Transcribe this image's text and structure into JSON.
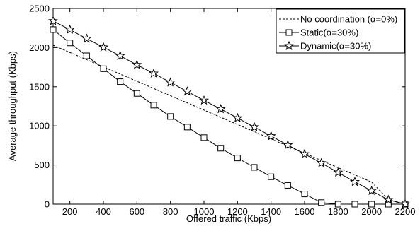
{
  "chart_data": {
    "type": "line",
    "xlabel": "Offered traffic (Kbps)",
    "ylabel": "Average throughput (Kbps)",
    "xlim": [
      100,
      2200
    ],
    "ylim": [
      0,
      2500
    ],
    "xticks": [
      200,
      400,
      600,
      800,
      1000,
      1200,
      1400,
      1600,
      1800,
      2000,
      2200
    ],
    "yticks": [
      0,
      500,
      1000,
      1500,
      2000,
      2500
    ],
    "grid": false,
    "legend_position": "top-right",
    "x": [
      100,
      200,
      300,
      400,
      500,
      600,
      700,
      800,
      900,
      1000,
      1100,
      1200,
      1300,
      1400,
      1500,
      1600,
      1700,
      1800,
      1900,
      2000,
      2100,
      2200
    ],
    "series": [
      {
        "name": "No coordination (α=0%)",
        "style": "dashed",
        "marker": "none",
        "color": "#000000",
        "values": [
          2030,
          1938,
          1846,
          1754,
          1662,
          1570,
          1478,
          1386,
          1294,
          1202,
          1110,
          1018,
          926,
          834,
          742,
          650,
          558,
          466,
          374,
          282,
          60,
          0
        ]
      },
      {
        "name": "Static(α=30%)",
        "style": "solid",
        "marker": "square",
        "color": "#000000",
        "values": [
          2230,
          2060,
          1895,
          1730,
          1565,
          1415,
          1265,
          1120,
          985,
          850,
          715,
          590,
          470,
          350,
          240,
          130,
          20,
          0,
          0,
          0,
          0,
          0
        ]
      },
      {
        "name": "Dynamic(α=30%)",
        "style": "solid",
        "marker": "star",
        "color": "#000000",
        "values": [
          2340,
          2230,
          2115,
          2005,
          1895,
          1780,
          1670,
          1555,
          1440,
          1325,
          1215,
          1100,
          985,
          870,
          755,
          640,
          525,
          405,
          285,
          170,
          55,
          0
        ]
      }
    ]
  }
}
